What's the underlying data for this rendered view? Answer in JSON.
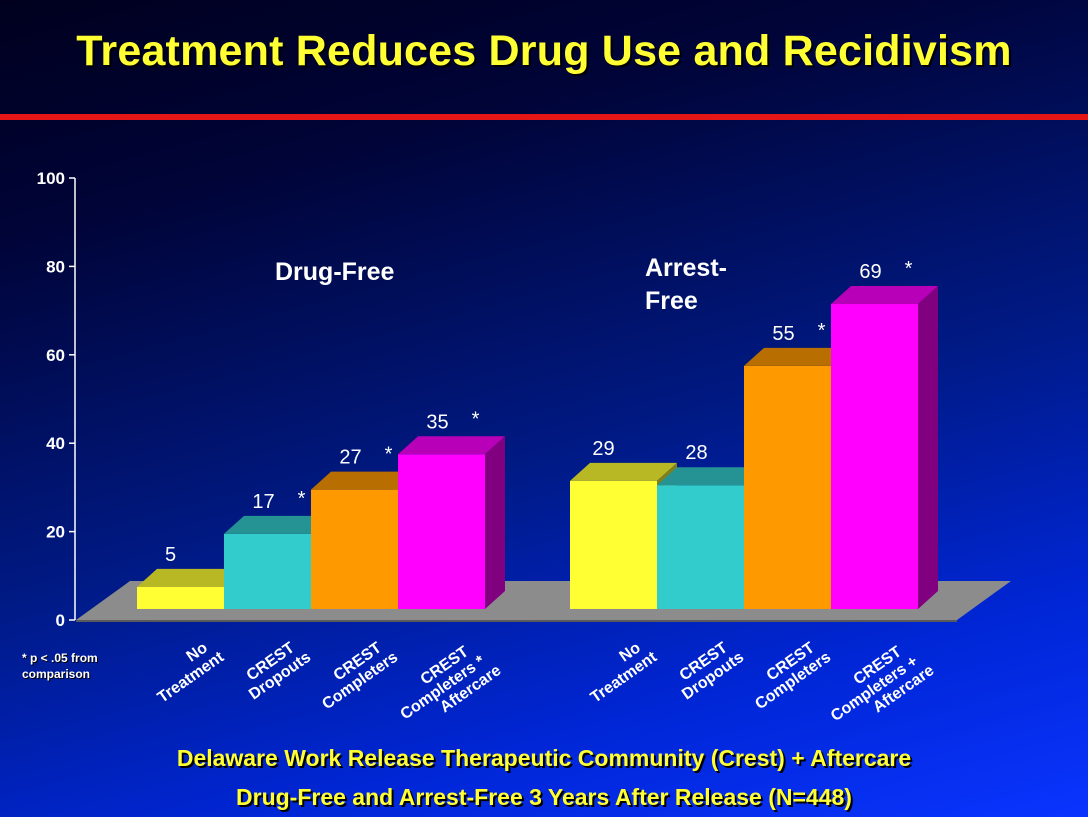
{
  "title": "Treatment Reduces Drug Use and Recidivism",
  "caption_line1": "Delaware Work Release Therapeutic Community (Crest) + Aftercare",
  "caption_line2": "Drug-Free and Arrest-Free 3 Years After Release (N=448)",
  "footnote": "* p < .05 from comparison",
  "colors": {
    "title": "#ffff33",
    "rule": "#e61616",
    "no_treatment": "#ffff33",
    "crest_dropouts": "#33cccc",
    "crest_completers": "#ff9900",
    "crest_completers_aftercare": "#ff00ff"
  },
  "chart_data": {
    "type": "bar",
    "ylim": [
      0,
      100
    ],
    "yticks": [
      "0",
      "20",
      "40",
      "60",
      "80",
      "100"
    ],
    "grid": false,
    "groups": [
      {
        "label": "Drug-Free",
        "categories": [
          "No Treatment",
          "CREST Dropouts",
          "CREST Completers",
          "CREST Completers + Aftercare"
        ],
        "category_label_lines": [
          [
            "No",
            "Treatment"
          ],
          [
            "CREST",
            "Dropouts"
          ],
          [
            "CREST",
            "Completers"
          ],
          [
            "CREST",
            "Completers *",
            "Aftercare"
          ]
        ],
        "values": [
          5,
          17,
          27,
          35
        ],
        "significant": [
          false,
          true,
          true,
          true
        ]
      },
      {
        "label": "Arrest-Free",
        "label_lines": [
          "Arrest-",
          "Free"
        ],
        "categories": [
          "No Treatment",
          "CREST Dropouts",
          "CREST Completers",
          "CREST Completers + Aftercare"
        ],
        "category_label_lines": [
          [
            "No",
            "Treatment"
          ],
          [
            "CREST",
            "Dropouts"
          ],
          [
            "CREST",
            "Completers"
          ],
          [
            "CREST",
            "Completers +",
            "Aftercare"
          ]
        ],
        "values": [
          29,
          28,
          55,
          69
        ],
        "significant": [
          false,
          false,
          true,
          true
        ]
      }
    ]
  }
}
